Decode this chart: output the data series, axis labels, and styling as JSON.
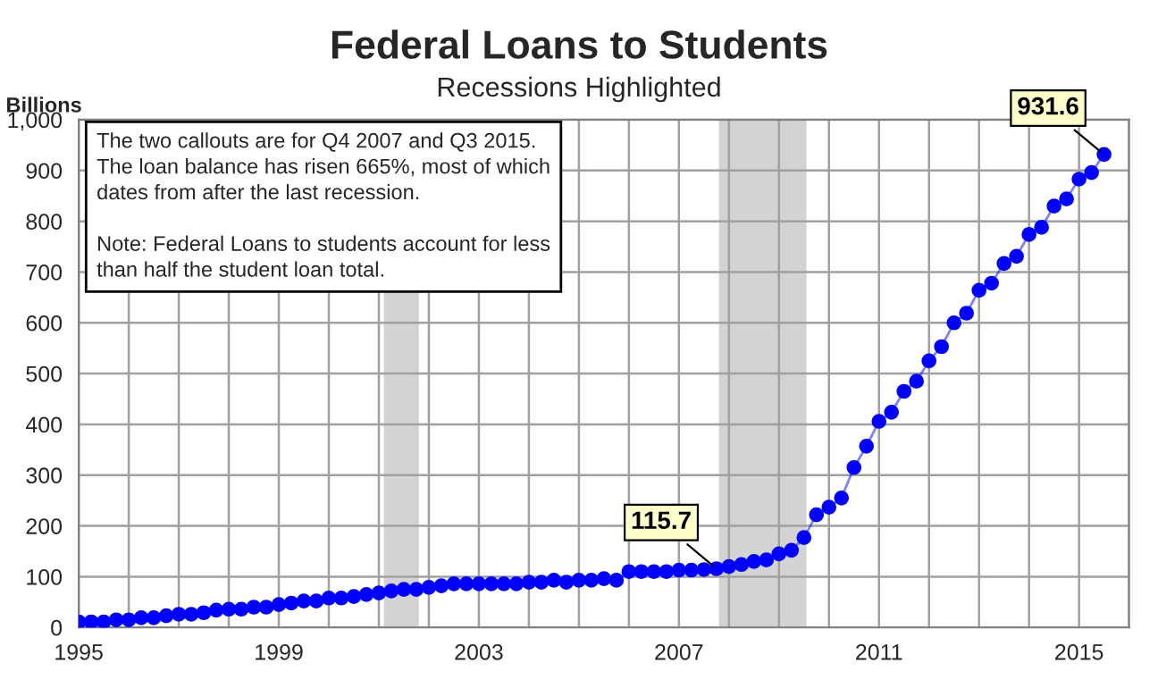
{
  "chart_data": {
    "type": "line",
    "title": "Federal Loans to Students",
    "subtitle": "Recessions Highlighted",
    "ylabel": "Billions",
    "annotations": [
      "The two callouts are for Q4 2007 and Q3 2015.\nThe loan balance has risen 665%, most of which\ndates from after the last recession.",
      "Note: Federal Loans to students account for less\nthan half the student loan total."
    ],
    "x": [
      1995,
      1995.25,
      1995.5,
      1995.75,
      1996,
      1996.25,
      1996.5,
      1996.75,
      1997,
      1997.25,
      1997.5,
      1997.75,
      1998,
      1998.25,
      1998.5,
      1998.75,
      1999,
      1999.25,
      1999.5,
      1999.75,
      2000,
      2000.25,
      2000.5,
      2000.75,
      2001,
      2001.25,
      2001.5,
      2001.75,
      2002,
      2002.25,
      2002.5,
      2002.75,
      2003,
      2003.25,
      2003.5,
      2003.75,
      2004,
      2004.25,
      2004.5,
      2004.75,
      2005,
      2005.25,
      2005.5,
      2005.75,
      2006,
      2006.25,
      2006.5,
      2006.75,
      2007,
      2007.25,
      2007.5,
      2007.75,
      2008,
      2008.25,
      2008.5,
      2008.75,
      2009,
      2009.25,
      2009.5,
      2009.75,
      2010,
      2010.25,
      2010.5,
      2010.75,
      2011,
      2011.25,
      2011.5,
      2011.75,
      2012,
      2012.25,
      2012.5,
      2012.75,
      2013,
      2013.25,
      2013.5,
      2013.75,
      2014,
      2014.25,
      2014.5,
      2014.75,
      2015,
      2015.25,
      2015.5
    ],
    "series": [
      {
        "color": "#0000ff",
        "values": [
          11,
          11,
          11,
          15,
          15,
          19,
          19,
          23,
          26,
          26,
          29,
          34,
          36,
          36,
          40,
          40,
          45,
          48,
          52,
          52,
          58,
          58,
          61,
          65,
          68,
          72,
          75,
          75,
          79,
          82,
          86,
          86,
          86,
          86,
          86,
          86,
          89,
          89,
          93,
          89,
          93,
          93,
          96,
          93,
          110,
          110,
          110,
          110,
          113,
          113,
          114,
          115.7,
          120,
          124,
          130,
          133,
          145,
          152,
          177,
          222,
          237,
          255,
          315,
          357,
          406,
          424,
          465,
          485,
          525,
          553,
          600,
          619,
          664,
          678,
          717,
          731,
          774,
          788,
          830,
          844,
          883,
          896,
          931.6
        ],
        "value_labels": [
          null,
          null,
          null,
          null,
          null,
          null,
          null,
          null,
          null,
          null,
          null,
          null,
          null,
          null,
          null,
          null,
          null,
          null,
          null,
          null,
          null,
          null,
          null,
          null,
          null,
          null,
          null,
          null,
          null,
          null,
          null,
          null,
          null,
          null,
          null,
          null,
          null,
          null,
          null,
          null,
          null,
          null,
          null,
          null,
          null,
          null,
          null,
          null,
          null,
          null,
          null,
          "115.7",
          null,
          null,
          null,
          null,
          null,
          null,
          null,
          null,
          null,
          null,
          null,
          null,
          null,
          null,
          null,
          null,
          null,
          null,
          null,
          null,
          null,
          null,
          null,
          null,
          null,
          null,
          null,
          null,
          null,
          null,
          "931.6"
        ]
      }
    ],
    "marker": "circle",
    "line_style": "solid",
    "xlim": [
      1995,
      2016
    ],
    "ylim": [
      0,
      1000
    ],
    "xticks": [
      1995,
      {
        "value": 1996,
        "label": null
      },
      {
        "value": 1997,
        "label": null
      },
      {
        "value": 1998,
        "label": null
      },
      1999,
      {
        "value": 2000,
        "label": null
      },
      {
        "value": 2001,
        "label": null
      },
      {
        "value": 2002,
        "label": null
      },
      2003,
      {
        "value": 2004,
        "label": null
      },
      {
        "value": 2005,
        "label": null
      },
      {
        "value": 2006,
        "label": null
      },
      2007,
      {
        "value": 2008,
        "label": null
      },
      {
        "value": 2009,
        "label": null
      },
      {
        "value": 2010,
        "label": null
      },
      2011,
      {
        "value": 2012,
        "label": null
      },
      {
        "value": 2013,
        "label": null
      },
      {
        "value": 2014,
        "label": null
      },
      2015,
      {
        "value": 2016,
        "label": null
      }
    ],
    "yticks": [
      0,
      100,
      200,
      300,
      400,
      500,
      600,
      700,
      800,
      900,
      {
        "value": 1000,
        "label": "1,000"
      }
    ],
    "bands": [
      {
        "axis": "x",
        "from": 2001.1,
        "to": 2001.8,
        "color": "#d3d3d3"
      },
      {
        "axis": "x",
        "from": 2007.8,
        "to": 2009.55,
        "color": "#d3d3d3"
      }
    ],
    "grid": true,
    "legend": false
  }
}
